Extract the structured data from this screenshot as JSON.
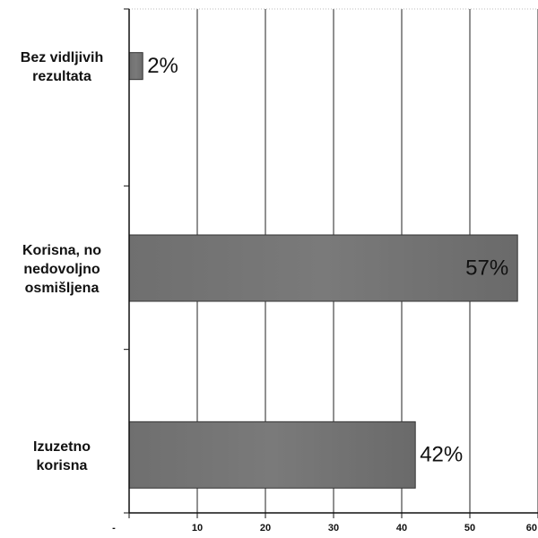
{
  "chart_data": {
    "type": "bar",
    "orientation": "horizontal",
    "categories": [
      [
        "Bez vidljivih",
        "rezultata"
      ],
      [
        "Korisna, no",
        "nedovoljno",
        "osmišljena"
      ],
      [
        "Izuzetno",
        "korisna"
      ]
    ],
    "values": [
      2,
      57,
      42
    ],
    "data_labels": [
      "2%",
      "57%",
      "42%"
    ],
    "xlim": [
      0,
      60
    ],
    "x_ticks": [
      "-",
      "10",
      "20",
      "30",
      "40",
      "50",
      "60"
    ],
    "x_tick_values": [
      0,
      10,
      20,
      30,
      40,
      50,
      60
    ],
    "grid": true,
    "bar_color": "#7a7a7a",
    "title": "",
    "xlabel": "",
    "ylabel": ""
  }
}
